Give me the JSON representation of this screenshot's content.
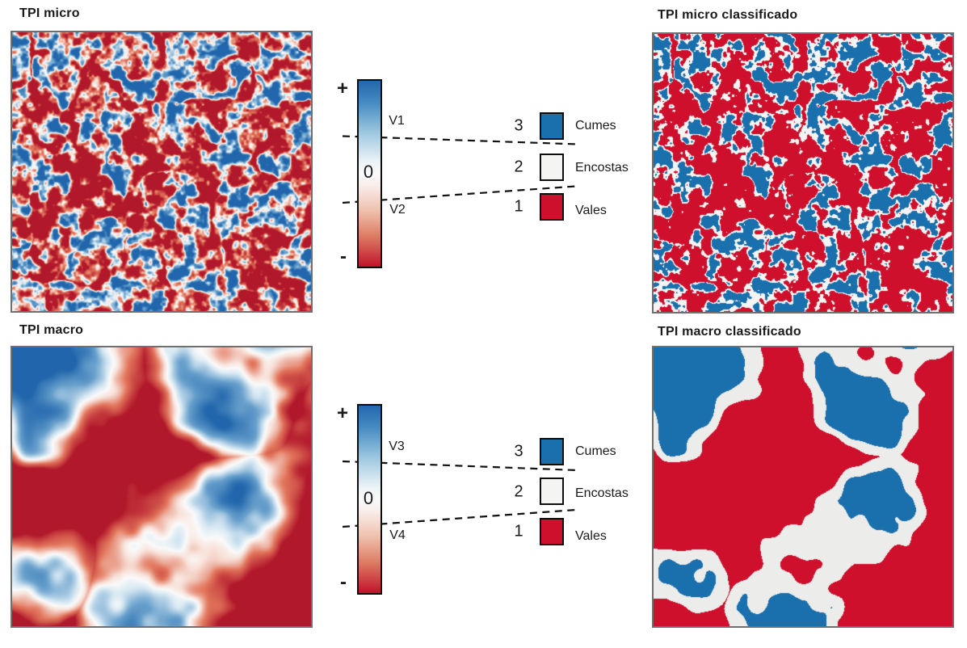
{
  "panels": {
    "micro": {
      "title": "TPI micro"
    },
    "micro_classified": {
      "title": "TPI micro classificado"
    },
    "macro": {
      "title": "TPI macro"
    },
    "macro_classified": {
      "title": "TPI macro classificado"
    }
  },
  "scales": [
    {
      "plus": "+",
      "zero": "0",
      "minus": "-",
      "upper_threshold": "V1",
      "lower_threshold": "V2"
    },
    {
      "plus": "+",
      "zero": "0",
      "minus": "-",
      "upper_threshold": "V3",
      "lower_threshold": "V4"
    }
  ],
  "legend": {
    "items": [
      {
        "value": "3",
        "label": "Cumes",
        "color": "#1a6fad"
      },
      {
        "value": "2",
        "label": "Encostas",
        "color": "#f4f4f2"
      },
      {
        "value": "1",
        "label": "Vales",
        "color": "#ce102d"
      }
    ]
  },
  "colors": {
    "positive_blue": "#1a6fad",
    "negative_red": "#ce102d",
    "neutral_white": "#f4f4f2",
    "neutral_gray": "#ececea",
    "map_border": "#6f6f6f"
  }
}
